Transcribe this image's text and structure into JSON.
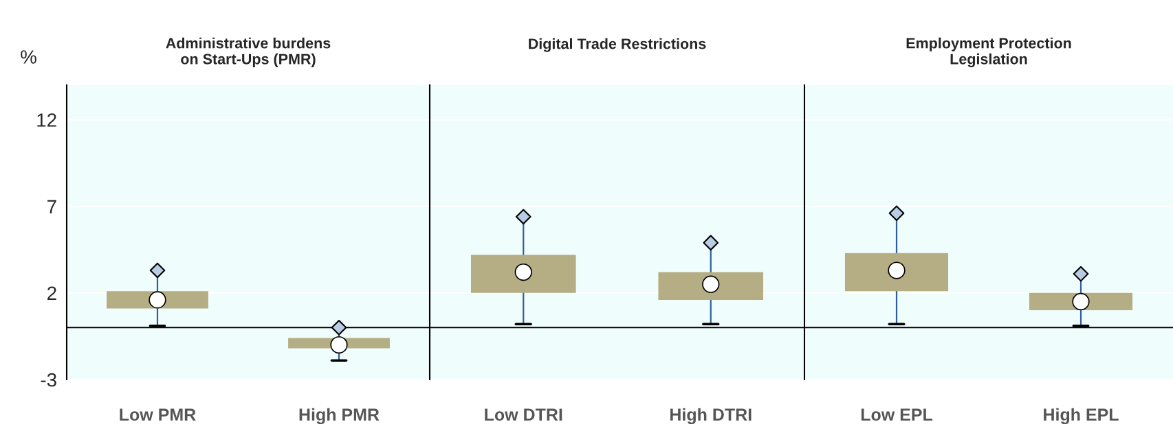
{
  "chart_data": [
    {
      "type": "box",
      "title": "Administrative burdens\non Start-Ups (PMR)",
      "ylabel": "%",
      "categories": [
        "Low PMR",
        "High PMR"
      ],
      "color": "#b5ad84",
      "boxes": [
        {
          "low": 0.1,
          "q1": 1.1,
          "median": 1.6,
          "q3": 2.1,
          "high": 3.3
        },
        {
          "low": -1.9,
          "q1": -1.2,
          "median": -1.0,
          "q3": -0.6,
          "high": 0.0
        }
      ],
      "series": [
        {
          "type": "scatter",
          "marker": "diamond",
          "color": "#b8cce4",
          "x": [
            "Low PMR",
            "High PMR"
          ],
          "values": [
            3.3,
            0.0
          ]
        }
      ],
      "ylim": [
        -3,
        14
      ],
      "yticks": [
        -3,
        2,
        7,
        12
      ],
      "grid": "y",
      "ref_lines": [
        {
          "axis": "y",
          "value": 0
        }
      ]
    },
    {
      "type": "box",
      "title": "Digital Trade Restrictions",
      "categories": [
        "Low DTRI",
        "High DTRI"
      ],
      "color": "#b5ad84",
      "boxes": [
        {
          "low": 0.2,
          "q1": 2.0,
          "median": 3.2,
          "q3": 4.2,
          "high": 6.4
        },
        {
          "low": 0.2,
          "q1": 1.6,
          "median": 2.5,
          "q3": 3.2,
          "high": 4.9
        }
      ],
      "series": [
        {
          "type": "scatter",
          "marker": "diamond",
          "color": "#b8cce4",
          "x": [
            "Low DTRI",
            "High DTRI"
          ],
          "values": [
            6.4,
            4.9
          ]
        }
      ],
      "ylim": [
        -3,
        14
      ],
      "yticks": [
        -3,
        2,
        7,
        12
      ],
      "tick_labels": "x",
      "grid": "y",
      "ref_lines": [
        {
          "axis": "y",
          "value": 0
        }
      ]
    },
    {
      "type": "box",
      "title": "Employment Protection\nLegislation",
      "categories": [
        "Low EPL",
        "High EPL"
      ],
      "color": "#b5ad84",
      "boxes": [
        {
          "low": 0.2,
          "q1": 2.1,
          "median": 3.3,
          "q3": 4.3,
          "high": 6.6
        },
        {
          "low": 0.1,
          "q1": 1.0,
          "median": 1.5,
          "q3": 2.0,
          "high": 3.1
        }
      ],
      "series": [
        {
          "type": "scatter",
          "marker": "diamond",
          "color": "#b8cce4",
          "x": [
            "Low EPL",
            "High EPL"
          ],
          "values": [
            6.6,
            3.1
          ]
        }
      ],
      "ylim": [
        -3,
        14
      ],
      "yticks": [
        -3,
        2,
        7,
        12
      ],
      "tick_labels": "x",
      "grid": "y",
      "ref_lines": [
        {
          "axis": "y",
          "value": 0
        }
      ]
    }
  ]
}
